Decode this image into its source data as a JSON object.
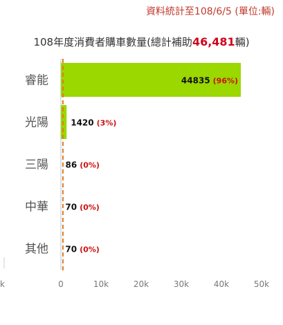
{
  "header": {
    "source_note": "資料統計至108/6/5 (單位:輛)"
  },
  "title": {
    "prefix": "108年度消費者購車數量(總計補助",
    "total": "46,481",
    "suffix": "輛)"
  },
  "colors": {
    "bar": "#9ad800",
    "average_line": "#e07b20",
    "percent_text": "#cc1111",
    "axis_line": "#b8c6d6"
  },
  "chart_data": {
    "type": "bar",
    "orientation": "horizontal",
    "title": "108年度消費者購車數量(總計補助46,481輛)",
    "categories": [
      "睿能",
      "光陽",
      "三陽",
      "中華",
      "其他"
    ],
    "values": [
      44835,
      1420,
      86,
      70,
      70
    ],
    "percent_labels": [
      "(96%)",
      "(3%)",
      "(0%)",
      "(0%)",
      "(0%)"
    ],
    "value_labels": [
      "44835",
      "1420",
      "86",
      "70",
      "70"
    ],
    "xlim": [
      0,
      50000
    ],
    "x_ticks": [
      0,
      10000,
      20000,
      30000,
      40000,
      50000
    ],
    "x_tick_labels": [
      "0",
      "10k",
      "20k",
      "30k",
      "40k",
      "50k"
    ],
    "edge_tick_label": "k",
    "reference_line_value": 500,
    "grid": false
  }
}
